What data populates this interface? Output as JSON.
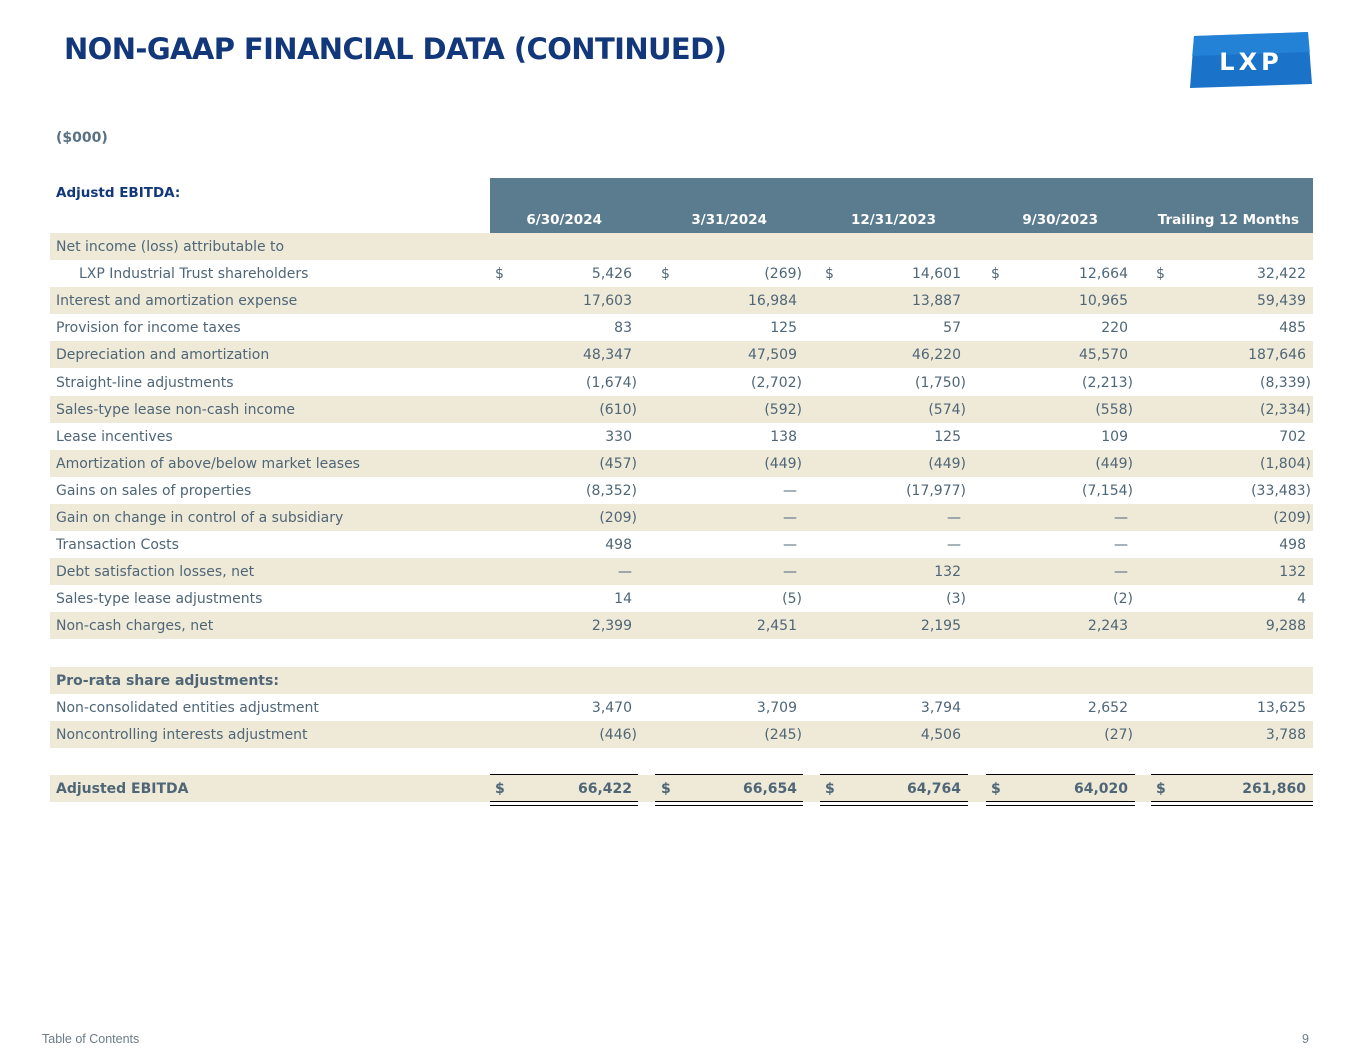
{
  "title": "NON-GAAP FINANCIAL DATA (CONTINUED)",
  "logo_text": "LXP",
  "units": "($000)",
  "section_label": "Adjustd EBITDA:",
  "columns": [
    "6/30/2024",
    "3/31/2024",
    "12/31/2023",
    "9/30/2023",
    "Trailing 12 Months"
  ],
  "rows": [
    {
      "label": "Net income (loss) attributable to",
      "values": [
        "",
        "",
        "",
        "",
        ""
      ],
      "shade": true
    },
    {
      "label": "LXP Industrial Trust shareholders",
      "indent": true,
      "dollar": true,
      "values": [
        "5,426",
        "(269)",
        "14,601",
        "12,664",
        "32,422"
      ]
    },
    {
      "label": "Interest and amortization expense",
      "values": [
        "17,603",
        "16,984",
        "13,887",
        "10,965",
        "59,439"
      ],
      "shade": true
    },
    {
      "label": "Provision for income taxes",
      "values": [
        "83",
        "125",
        "57",
        "220",
        "485"
      ]
    },
    {
      "label": "Depreciation and amortization",
      "values": [
        "48,347",
        "47,509",
        "46,220",
        "45,570",
        "187,646"
      ],
      "shade": true
    },
    {
      "label": "Straight-line adjustments",
      "values": [
        "(1,674)",
        "(2,702)",
        "(1,750)",
        "(2,213)",
        "(8,339)"
      ]
    },
    {
      "label": "Sales-type lease non-cash income",
      "values": [
        "(610)",
        "(592)",
        "(574)",
        "(558)",
        "(2,334)"
      ],
      "shade": true
    },
    {
      "label": "Lease incentives",
      "values": [
        "330",
        "138",
        "125",
        "109",
        "702"
      ]
    },
    {
      "label": "Amortization of above/below market leases",
      "values": [
        "(457)",
        "(449)",
        "(449)",
        "(449)",
        "(1,804)"
      ],
      "shade": true
    },
    {
      "label": "Gains on sales of properties",
      "values": [
        "(8,352)",
        "—",
        "(17,977)",
        "(7,154)",
        "(33,483)"
      ]
    },
    {
      "label": "Gain on change in control of a subsidiary",
      "values": [
        "(209)",
        "—",
        "—",
        "—",
        "(209)"
      ],
      "shade": true
    },
    {
      "label": "Transaction Costs",
      "values": [
        "498",
        "—",
        "—",
        "—",
        "498"
      ]
    },
    {
      "label": "Debt satisfaction losses, net",
      "values": [
        "—",
        "—",
        "132",
        "—",
        "132"
      ],
      "shade": true
    },
    {
      "label": "Sales-type lease adjustments",
      "values": [
        "14",
        "(5)",
        "(3)",
        "(2)",
        "4"
      ]
    },
    {
      "label": "Non-cash charges, net",
      "values": [
        "2,399",
        "2,451",
        "2,195",
        "2,243",
        "9,288"
      ],
      "shade": true
    },
    {
      "label": "",
      "values": [
        "",
        "",
        "",
        "",
        ""
      ]
    },
    {
      "label": "Pro-rata share adjustments:",
      "bold": true,
      "values": [
        "",
        "",
        "",
        "",
        ""
      ],
      "shade": true
    },
    {
      "label": "Non-consolidated entities adjustment",
      "values": [
        "3,470",
        "3,709",
        "3,794",
        "2,652",
        "13,625"
      ]
    },
    {
      "label": "Noncontrolling interests adjustment",
      "values": [
        "(446)",
        "(245)",
        "4,506",
        "(27)",
        "3,788"
      ],
      "shade": true
    },
    {
      "label": "",
      "values": [
        "",
        "",
        "",
        "",
        ""
      ]
    },
    {
      "label": "Adjusted EBITDA",
      "bold": true,
      "dollar": true,
      "total": true,
      "values": [
        "66,422",
        "66,654",
        "64,764",
        "64,020",
        "261,860"
      ],
      "shade": true
    }
  ],
  "dollar_sign": "$",
  "footer": {
    "left": "Table of Contents",
    "page_number": "9"
  }
}
